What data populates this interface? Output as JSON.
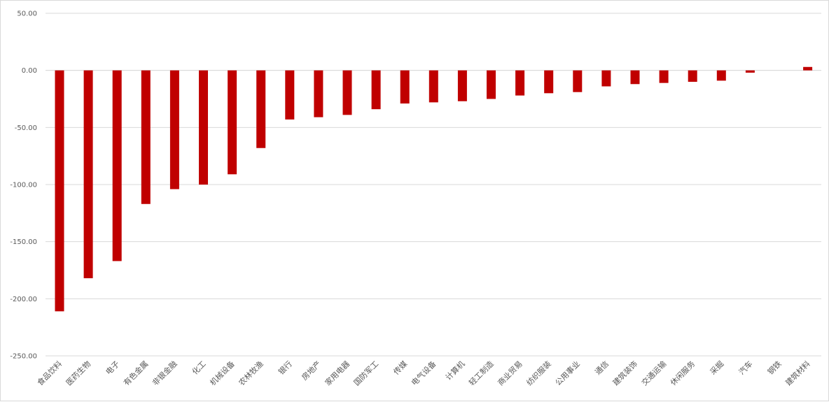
{
  "chart_data": {
    "type": "bar",
    "title": "",
    "xlabel": "",
    "ylabel": "",
    "ylim": [
      -250,
      50
    ],
    "yticks": [
      50,
      0,
      -50,
      -100,
      -150,
      -200,
      -250
    ],
    "ytick_labels": [
      "50.00",
      "0.00",
      "-50.00",
      "-100.00",
      "-150.00",
      "-200.00",
      "-250.00"
    ],
    "grid": true,
    "bar_color": "#c00000",
    "categories": [
      "食品饮料",
      "医药生物",
      "电子",
      "有色金属",
      "非银金融",
      "化工",
      "机械设备",
      "农林牧渔",
      "银行",
      "房地产",
      "家用电器",
      "国防军工",
      "传媒",
      "电气设备",
      "计算机",
      "轻工制造",
      "商业贸易",
      "纺织服装",
      "公用事业",
      "通信",
      "建筑装饰",
      "交通运输",
      "休闲服务",
      "采掘",
      "汽车",
      "钢铁",
      "建筑材料"
    ],
    "values": [
      -211,
      -182,
      -167,
      -117,
      -104,
      -100,
      -91,
      -68,
      -43,
      -41,
      -39,
      -34,
      -29,
      -28,
      -27,
      -25,
      -22,
      -20,
      -19,
      -14,
      -12,
      -11,
      -10,
      -9,
      -2,
      0,
      3
    ]
  }
}
